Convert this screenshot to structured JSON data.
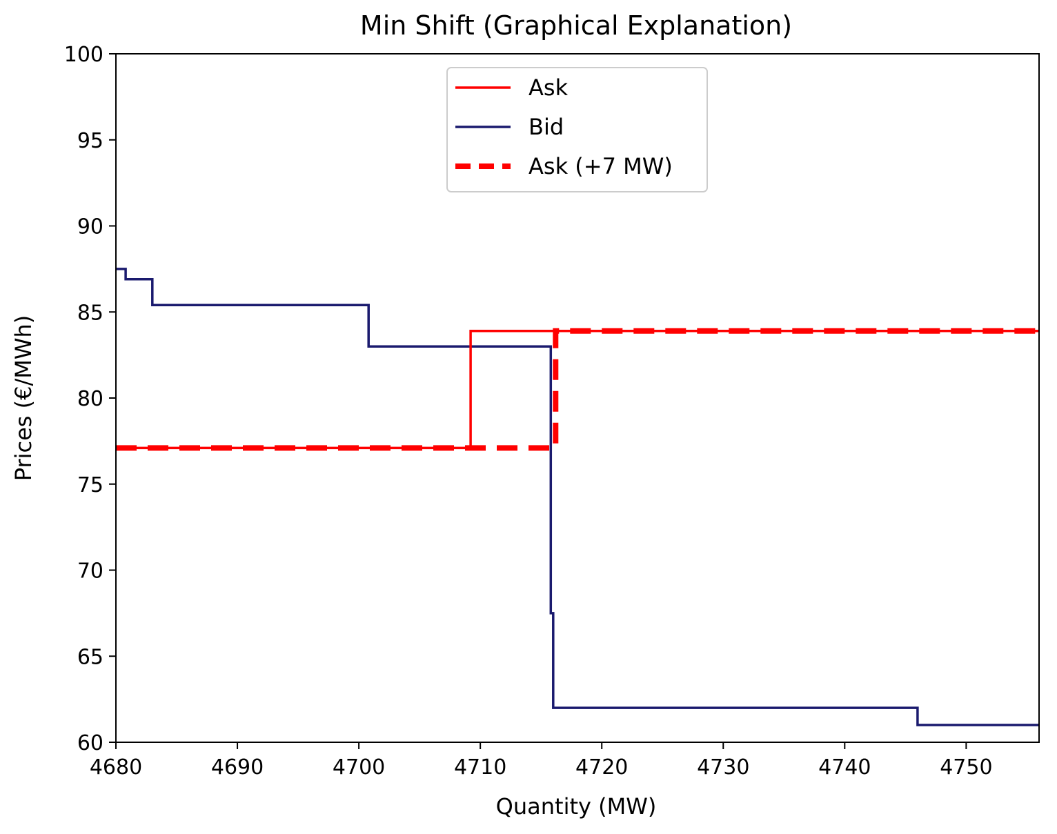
{
  "chart_data": {
    "type": "line",
    "title": "Min Shift (Graphical Explanation)",
    "xlabel": "Quantity (MW)",
    "ylabel": "Prices (€/MWh)",
    "xlim": [
      4680,
      4756
    ],
    "ylim": [
      60,
      100
    ],
    "xticks": [
      4680,
      4690,
      4700,
      4710,
      4720,
      4730,
      4740,
      4750
    ],
    "yticks": [
      60,
      65,
      70,
      75,
      80,
      85,
      90,
      95,
      100
    ],
    "grid": false,
    "legend_position": "upper-center",
    "series": [
      {
        "name": "Ask",
        "style": "solid",
        "color": "#ff0000",
        "x": [
          4680,
          4709.2,
          4709.2,
          4756
        ],
        "y": [
          77.1,
          77.1,
          83.9,
          83.9
        ]
      },
      {
        "name": "Bid",
        "style": "solid",
        "color": "#1a1a6e",
        "x": [
          4680,
          4680.8,
          4680.8,
          4683,
          4683,
          4700.8,
          4700.8,
          4715.8,
          4715.8,
          4716,
          4716,
          4746,
          4746,
          4756
        ],
        "y": [
          87.5,
          87.5,
          86.9,
          86.9,
          85.4,
          85.4,
          83.0,
          83.0,
          67.5,
          67.5,
          62.0,
          62.0,
          61.0,
          61.0
        ]
      },
      {
        "name": "Ask (+7 MW)",
        "style": "dashed",
        "color": "#ff0000",
        "x": [
          4680,
          4716.2,
          4716.2,
          4756
        ],
        "y": [
          77.1,
          77.1,
          83.9,
          83.9
        ]
      }
    ]
  }
}
